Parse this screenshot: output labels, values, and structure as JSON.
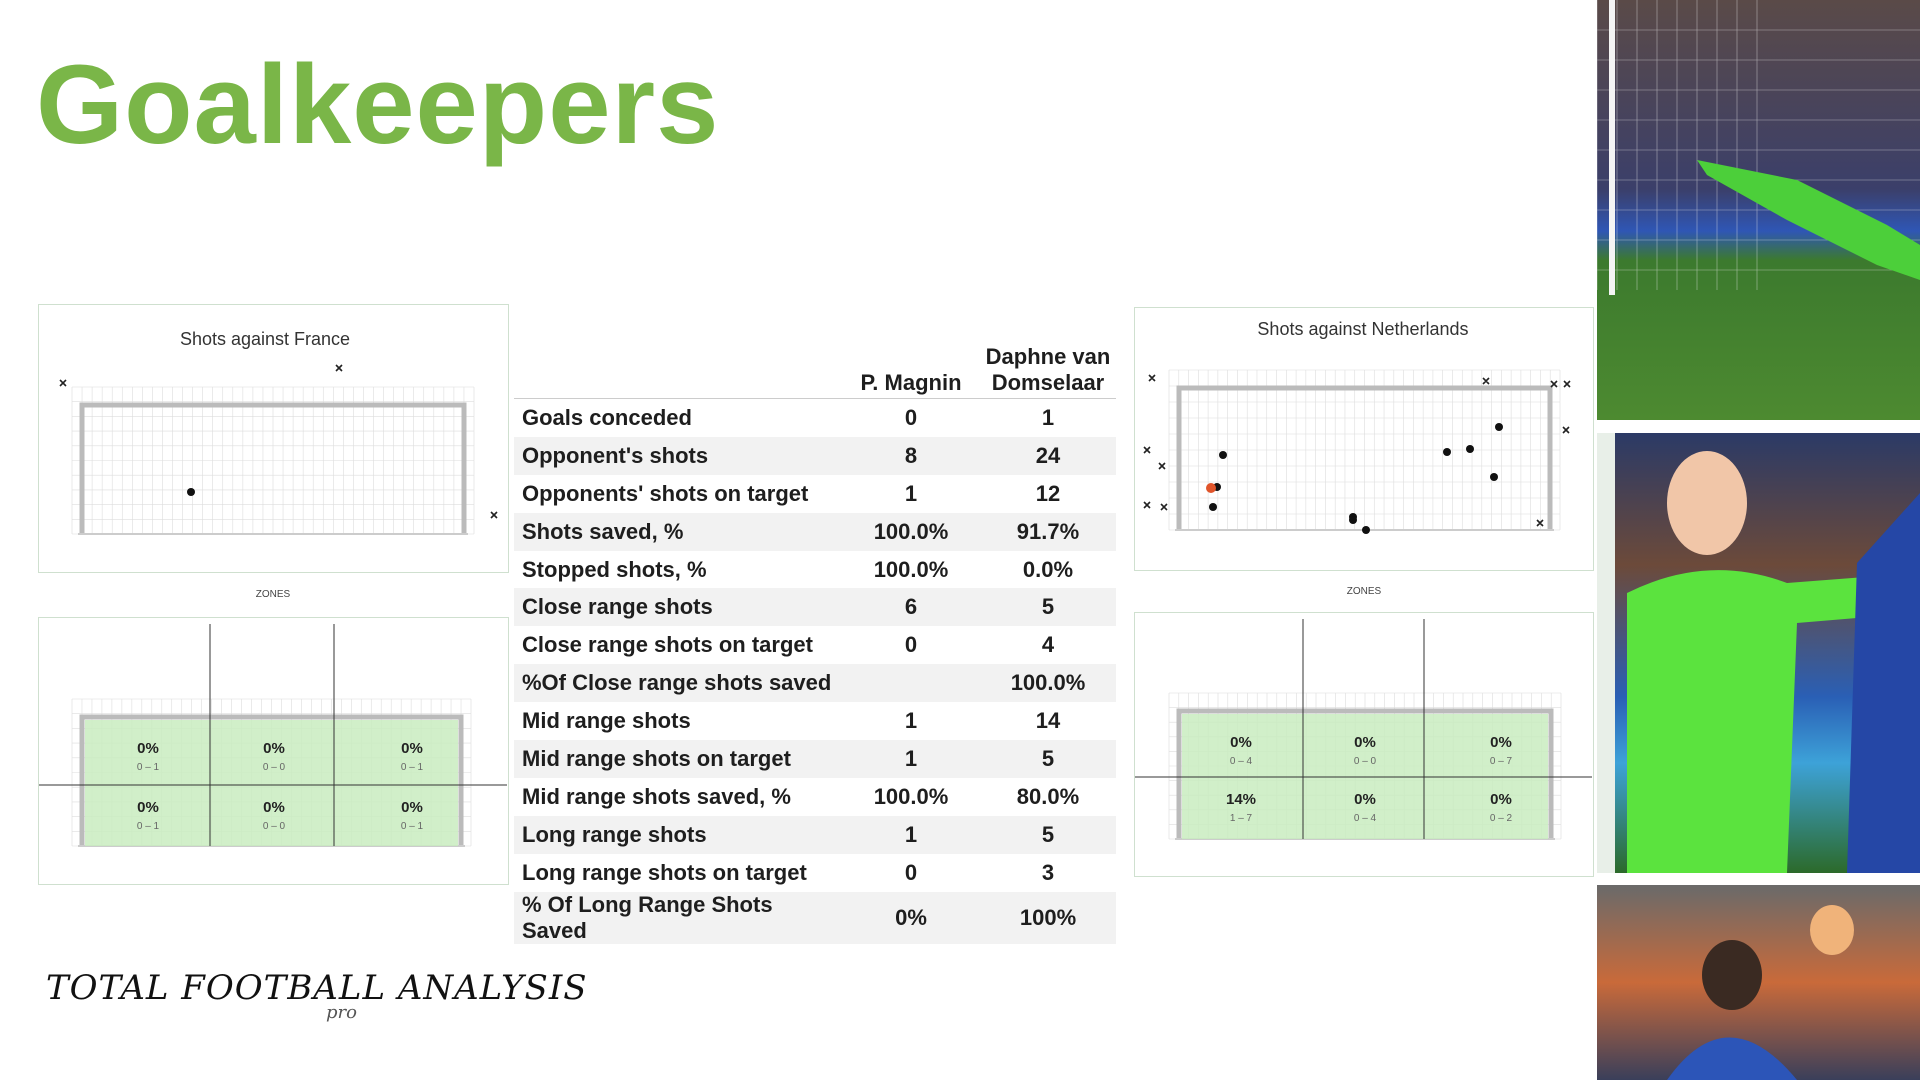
{
  "header": {
    "title": "Goalkeepers"
  },
  "left_panel": {
    "title": "Shots against France",
    "zones_label": "ZONES",
    "zones": [
      [
        {
          "pct": "0%",
          "range": "0 – 1"
        },
        {
          "pct": "0%",
          "range": "0 – 0"
        },
        {
          "pct": "0%",
          "range": "0 – 1"
        }
      ],
      [
        {
          "pct": "0%",
          "range": "0 – 1"
        },
        {
          "pct": "0%",
          "range": "0 – 0"
        },
        {
          "pct": "0%",
          "range": "0 – 1"
        }
      ]
    ]
  },
  "right_panel": {
    "title": "Shots against Netherlands",
    "zones_label": "ZONES",
    "zones": [
      [
        {
          "pct": "0%",
          "range": "0 – 4"
        },
        {
          "pct": "0%",
          "range": "0 – 0"
        },
        {
          "pct": "0%",
          "range": "0 – 7"
        }
      ],
      [
        {
          "pct": "14%",
          "range": "1 – 7"
        },
        {
          "pct": "0%",
          "range": "0 – 4"
        },
        {
          "pct": "0%",
          "range": "0 – 2"
        }
      ]
    ]
  },
  "table": {
    "columns": [
      "P. Magnin",
      "Daphne van Domselaar"
    ],
    "rows": [
      [
        "Goals conceded",
        "0",
        "1"
      ],
      [
        "Opponent's shots",
        "8",
        "24"
      ],
      [
        "Opponents' shots  on target",
        "1",
        "12"
      ],
      [
        "Shots saved, %",
        "100.0%",
        "91.7%"
      ],
      [
        "Stopped shots, %",
        "100.0%",
        "0.0%"
      ],
      [
        "Close range shots",
        "6",
        "5"
      ],
      [
        "Close range shots on target",
        "0",
        "4"
      ],
      [
        "%Of Close range shots saved",
        null,
        "100.0%"
      ],
      [
        "Mid range shots",
        "1",
        "14"
      ],
      [
        "Mid range shots on target",
        "1",
        "5"
      ],
      [
        "Mid range shots saved, %",
        "100.0%",
        "80.0%"
      ],
      [
        "Long range shots",
        "1",
        "5"
      ],
      [
        "Long range shots on target",
        "0",
        "3"
      ],
      [
        "% Of Long Range Shots Saved",
        "0%",
        "100%"
      ]
    ]
  },
  "logo": {
    "text": "TOTAL FOOTBALL ANALYSIS",
    "sub": "pro"
  }
}
